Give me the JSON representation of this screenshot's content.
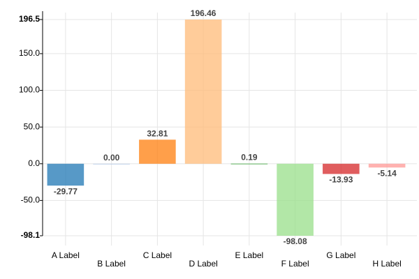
{
  "chart_data": {
    "type": "bar",
    "categories": [
      "A Label",
      "B Label",
      "C Label",
      "D Label",
      "E Label",
      "F Label",
      "G Label",
      "H Label"
    ],
    "values": [
      -29.77,
      0,
      32.81,
      196.46,
      0.19,
      -98.08,
      -13.93,
      -5.14
    ],
    "value_labels": [
      "-29.77",
      "0.00",
      "32.81",
      "196.46",
      "0.19",
      "-98.08",
      "-13.93",
      "-5.14"
    ],
    "colors": [
      "#1f77b4",
      "#aec7e8",
      "#ff7f0e",
      "#ffbb78",
      "#2ca02c",
      "#98df8a",
      "#d62728",
      "#ff9896"
    ],
    "ylim": [
      -98.1,
      196.5
    ],
    "yticks": [
      -98.1,
      {
        "value": -50,
        "label": "-50.0"
      },
      {
        "value": 0,
        "label": "0.0"
      },
      {
        "value": 50,
        "label": "50.0"
      },
      {
        "value": 100,
        "label": "100.0"
      },
      {
        "value": 150,
        "label": "150.0"
      },
      196.5
    ],
    "grid": true
  }
}
